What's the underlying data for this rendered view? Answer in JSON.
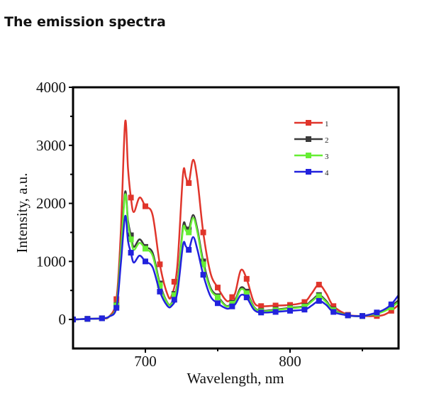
{
  "page_title": "The emission spectra",
  "chart_data": {
    "type": "line",
    "title": "",
    "xlabel": "Wavelength, nm",
    "ylabel": "Intensity, a.u.",
    "xlim": [
      650,
      875
    ],
    "ylim": [
      -500,
      4000
    ],
    "xticks": [
      700,
      800
    ],
    "yticks": [
      0,
      1000,
      2000,
      3000,
      4000
    ],
    "grid": false,
    "legend_position": "top-right",
    "series": [
      {
        "name": "1",
        "color": "#e0352b",
        "x": [
          650,
          660,
          670,
          675,
          680,
          683,
          686,
          688,
          690,
          692,
          696,
          700,
          705,
          710,
          715,
          718,
          722,
          726,
          728,
          730,
          733,
          736,
          740,
          745,
          750,
          755,
          758,
          762,
          766,
          770,
          775,
          780,
          790,
          800,
          810,
          815,
          820,
          825,
          830,
          840,
          850,
          860,
          865,
          870,
          875
        ],
        "y": [
          0,
          10,
          20,
          50,
          350,
          1500,
          3400,
          2600,
          2100,
          1850,
          2100,
          1950,
          1800,
          950,
          450,
          400,
          900,
          2500,
          2450,
          2350,
          2750,
          2400,
          1500,
          800,
          550,
          350,
          320,
          450,
          850,
          700,
          300,
          230,
          240,
          250,
          300,
          450,
          600,
          450,
          230,
          80,
          60,
          60,
          80,
          150,
          250
        ]
      },
      {
        "name": "2",
        "color": "#3a3a3a",
        "x": [
          650,
          660,
          670,
          675,
          680,
          683,
          686,
          688,
          690,
          692,
          696,
          700,
          705,
          710,
          715,
          718,
          722,
          726,
          728,
          730,
          733,
          736,
          740,
          745,
          750,
          755,
          758,
          762,
          766,
          770,
          775,
          780,
          790,
          800,
          810,
          815,
          820,
          825,
          830,
          840,
          850,
          860,
          865,
          870,
          875
        ],
        "y": [
          0,
          10,
          20,
          50,
          250,
          1200,
          2200,
          1700,
          1450,
          1250,
          1380,
          1250,
          1150,
          620,
          300,
          280,
          600,
          1600,
          1600,
          1550,
          1800,
          1550,
          1000,
          550,
          400,
          250,
          240,
          330,
          550,
          480,
          220,
          150,
          170,
          200,
          230,
          330,
          420,
          320,
          170,
          70,
          60,
          100,
          150,
          230,
          330
        ]
      },
      {
        "name": "3",
        "color": "#66ee33",
        "x": [
          650,
          660,
          670,
          675,
          680,
          683,
          686,
          688,
          690,
          692,
          696,
          700,
          705,
          710,
          715,
          718,
          722,
          726,
          728,
          730,
          733,
          736,
          740,
          745,
          750,
          755,
          758,
          762,
          766,
          770,
          775,
          780,
          790,
          800,
          810,
          815,
          820,
          825,
          830,
          840,
          850,
          860,
          865,
          870,
          875
        ],
        "y": [
          0,
          10,
          20,
          50,
          240,
          1150,
          2150,
          1650,
          1380,
          1200,
          1320,
          1220,
          1100,
          590,
          290,
          270,
          570,
          1550,
          1530,
          1500,
          1750,
          1500,
          950,
          520,
          380,
          240,
          230,
          310,
          520,
          450,
          210,
          140,
          160,
          190,
          220,
          310,
          400,
          300,
          160,
          70,
          60,
          100,
          140,
          210,
          300
        ]
      },
      {
        "name": "4",
        "color": "#2222dd",
        "x": [
          650,
          660,
          670,
          675,
          680,
          683,
          686,
          688,
          690,
          692,
          696,
          700,
          705,
          710,
          715,
          718,
          722,
          726,
          728,
          730,
          733,
          736,
          740,
          745,
          750,
          755,
          758,
          762,
          766,
          770,
          775,
          780,
          790,
          800,
          810,
          815,
          820,
          825,
          830,
          840,
          850,
          860,
          865,
          870,
          875
        ],
        "y": [
          0,
          10,
          20,
          50,
          200,
          950,
          1780,
          1350,
          1150,
          980,
          1100,
          1000,
          900,
          480,
          240,
          230,
          450,
          1280,
          1260,
          1200,
          1420,
          1200,
          770,
          400,
          280,
          200,
          190,
          260,
          420,
          380,
          170,
          120,
          130,
          150,
          170,
          240,
          320,
          250,
          130,
          70,
          60,
          120,
          170,
          260,
          420
        ]
      }
    ]
  }
}
